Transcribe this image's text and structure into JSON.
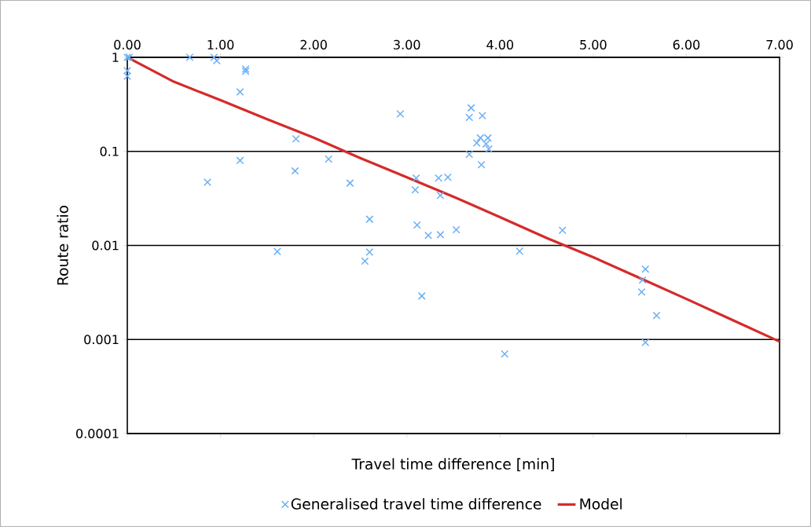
{
  "chart_data": {
    "type": "scatter",
    "xlabel": "Travel time difference [min]",
    "ylabel": "Route ratio",
    "xlim": [
      0,
      7
    ],
    "ylim": [
      0.0001,
      1
    ],
    "log": "y",
    "grid": "y",
    "legend": "bottom",
    "xticks": [
      {
        "value": 0,
        "label": "0.00"
      },
      {
        "value": 1,
        "label": "1.00"
      },
      {
        "value": 2,
        "label": "2.00"
      },
      {
        "value": 3,
        "label": "3.00"
      },
      {
        "value": 4,
        "label": "4.00"
      },
      {
        "value": 5,
        "label": "5.00"
      },
      {
        "value": 6,
        "label": "6.00"
      },
      {
        "value": 7,
        "label": "7.00"
      }
    ],
    "yticks": [
      1,
      0.1,
      0.01,
      0.001,
      0.0001
    ],
    "series": [
      {
        "name": "Generalised travel time difference",
        "marker": "cross",
        "color": "#6aaef5",
        "x": [
          0,
          0.02,
          0,
          0,
          0.67,
          0.93,
          0.96,
          1.27,
          1.27,
          1.21,
          1.21,
          0.86,
          1.8,
          1.81,
          2.16,
          2.39,
          2.93,
          2.6,
          2.6,
          2.55,
          1.61,
          3.1,
          3.09,
          3.11,
          3.23,
          3.36,
          3.16,
          3.34,
          3.44,
          3.36,
          3.53,
          3.69,
          3.67,
          3.81,
          3.75,
          3.79,
          3.87,
          3.85,
          3.88,
          3.67,
          3.8,
          4.05,
          4.21,
          4.67,
          5.56,
          5.53,
          5.52,
          5.68,
          5.56
        ],
        "values": [
          1,
          1,
          0.72,
          0.63,
          1,
          1,
          0.92,
          0.75,
          0.71,
          0.43,
          0.08,
          0.047,
          0.062,
          0.136,
          0.083,
          0.046,
          0.25,
          0.019,
          0.0085,
          0.0068,
          0.0086,
          0.052,
          0.039,
          0.0165,
          0.0128,
          0.013,
          0.0029,
          0.052,
          0.053,
          0.034,
          0.0147,
          0.29,
          0.23,
          0.24,
          0.123,
          0.139,
          0.139,
          0.12,
          0.106,
          0.093,
          0.072,
          0.0007,
          0.0087,
          0.0145,
          0.0056,
          0.0043,
          0.0032,
          0.0018,
          0.00093
        ]
      },
      {
        "name": "Model",
        "type": "line",
        "marker": "none",
        "line_style": "solid",
        "color": "#d62a2a",
        "x": [
          0,
          0.5,
          1,
          1.5,
          2,
          2.5,
          3,
          3.5,
          4,
          4.5,
          5,
          5.5,
          6,
          6.5,
          7
        ],
        "values": [
          1,
          0.55,
          0.35,
          0.22,
          0.14,
          0.085,
          0.053,
          0.033,
          0.02,
          0.012,
          0.0075,
          0.0045,
          0.0027,
          0.0016,
          0.00095
        ]
      }
    ]
  }
}
